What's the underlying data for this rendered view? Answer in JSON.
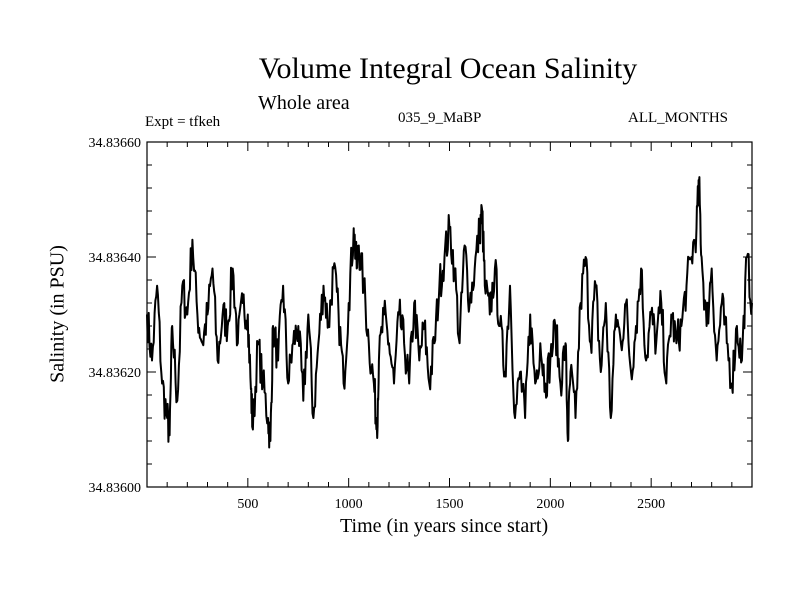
{
  "chart_data": {
    "type": "line",
    "title": "Volume Integral Ocean Salinity",
    "subtitle": "Whole area",
    "annotations": {
      "left": "Expt = tfkeh",
      "center": "035_9_MaBP",
      "right": "ALL_MONTHS"
    },
    "xlabel": "Time (in years since start)",
    "ylabel": "Salinity (in PSU)",
    "xlim": [
      0,
      3000
    ],
    "ylim": [
      34.836,
      34.8366
    ],
    "xticks": [
      500,
      1000,
      1500,
      2000,
      2500
    ],
    "yticks": [
      "34.83600",
      "34.83620",
      "34.83640",
      "34.83660"
    ],
    "ytick_values": [
      34.836,
      34.8362,
      34.8364,
      34.8366
    ],
    "grid": false,
    "series": [
      {
        "color": "#000000",
        "x": [
          0,
          25,
          50,
          75,
          100,
          112,
          125,
          150,
          175,
          200,
          225,
          250,
          275,
          300,
          325,
          350,
          375,
          400,
          425,
          450,
          475,
          500,
          515,
          525,
          550,
          575,
          600,
          612,
          625,
          650,
          675,
          700,
          725,
          750,
          775,
          800,
          825,
          850,
          875,
          900,
          925,
          950,
          975,
          1000,
          1025,
          1040,
          1050,
          1075,
          1100,
          1125,
          1140,
          1150,
          1175,
          1200,
          1225,
          1250,
          1275,
          1300,
          1325,
          1350,
          1375,
          1400,
          1425,
          1450,
          1475,
          1500,
          1525,
          1550,
          1575,
          1600,
          1625,
          1650,
          1662,
          1675,
          1700,
          1725,
          1750,
          1775,
          1800,
          1825,
          1850,
          1875,
          1900,
          1925,
          1950,
          1975,
          2000,
          2025,
          2050,
          2075,
          2087,
          2100,
          2125,
          2150,
          2175,
          2200,
          2225,
          2250,
          2275,
          2300,
          2325,
          2350,
          2375,
          2400,
          2425,
          2450,
          2475,
          2500,
          2525,
          2550,
          2575,
          2600,
          2625,
          2650,
          2675,
          2700,
          2725,
          2737,
          2750,
          2775,
          2800,
          2825,
          2850,
          2875,
          2900,
          2925,
          2950,
          2975,
          3000
        ],
        "values": [
          34.8363,
          34.83622,
          34.83635,
          34.83618,
          34.83612,
          34.83609,
          34.83628,
          34.83615,
          34.83635,
          34.8363,
          34.83643,
          34.8363,
          34.83625,
          34.8363,
          34.83638,
          34.83622,
          34.8363,
          34.83628,
          34.83638,
          34.83625,
          34.83632,
          34.8363,
          34.83617,
          34.8361,
          34.83625,
          34.83618,
          34.83612,
          34.83608,
          34.83628,
          34.83622,
          34.83635,
          34.83618,
          34.83625,
          34.83628,
          34.83615,
          34.8363,
          34.83612,
          34.83625,
          34.83635,
          34.83628,
          34.83638,
          34.8363,
          34.83618,
          34.83632,
          34.83645,
          34.83638,
          34.83642,
          34.83635,
          34.83625,
          34.83618,
          34.8361,
          34.83622,
          34.8363,
          34.83625,
          34.83618,
          34.8363,
          34.83625,
          34.83618,
          34.83632,
          34.83622,
          34.83628,
          34.83618,
          34.83625,
          34.83635,
          34.8364,
          34.83645,
          34.83638,
          34.83625,
          34.83642,
          34.83632,
          34.83638,
          34.83645,
          34.83648,
          34.83635,
          34.8363,
          34.83638,
          34.83628,
          34.8362,
          34.83635,
          34.83612,
          34.8362,
          34.83612,
          34.8363,
          34.83618,
          34.83625,
          34.83618,
          34.83622,
          34.83628,
          34.83618,
          34.83625,
          34.83608,
          34.8362,
          34.83612,
          34.83632,
          34.8364,
          34.83625,
          34.83635,
          34.8362,
          34.83632,
          34.83612,
          34.8363,
          34.83625,
          34.83632,
          34.8362,
          34.83628,
          34.83638,
          34.83622,
          34.8363,
          34.83625,
          34.83632,
          34.83618,
          34.8363,
          34.83625,
          34.83628,
          34.83635,
          34.8364,
          34.83645,
          34.83653,
          34.8364,
          34.83628,
          34.83638,
          34.83622,
          34.83632,
          34.83625,
          34.83618,
          34.83628,
          34.83622,
          34.8364,
          34.83632
        ]
      }
    ]
  }
}
